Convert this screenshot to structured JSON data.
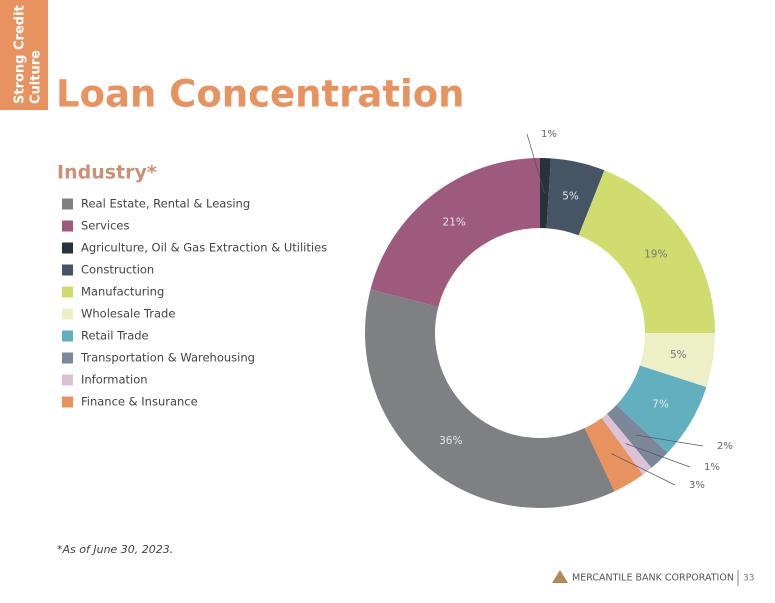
{
  "section_tab": [
    "Strong Credit",
    "Culture"
  ],
  "chart_data": {
    "type": "donut",
    "title": "Loan Concentration",
    "legend_title": "Industry*",
    "categories": [
      "Real Estate, Rental & Leasing",
      "Services",
      "Agriculture, Oil & Gas Extraction & Utilities",
      "Construction",
      "Manufacturing",
      "Wholesale Trade",
      "Retail Trade",
      "Transportation & Warehousing",
      "Information",
      "Finance & Insurance"
    ],
    "values": [
      36,
      21,
      1,
      5,
      19,
      5,
      7,
      2,
      1,
      3
    ],
    "value_labels": [
      "36%",
      "21%",
      "1%",
      "5%",
      "19%",
      "5%",
      "7%",
      "2%",
      "1%",
      "3%"
    ],
    "colors": [
      "#7f8083",
      "#9e5a7d",
      "#27323d",
      "#465566",
      "#d0dc6d",
      "#edf0c6",
      "#62afbf",
      "#7c879a",
      "#dbc2d6",
      "#e8935f"
    ],
    "legend": "left"
  },
  "footnote": "*As of June 30, 2023.",
  "footer": {
    "company": "MERCANTILE BANK CORPORATION",
    "page": "33"
  }
}
